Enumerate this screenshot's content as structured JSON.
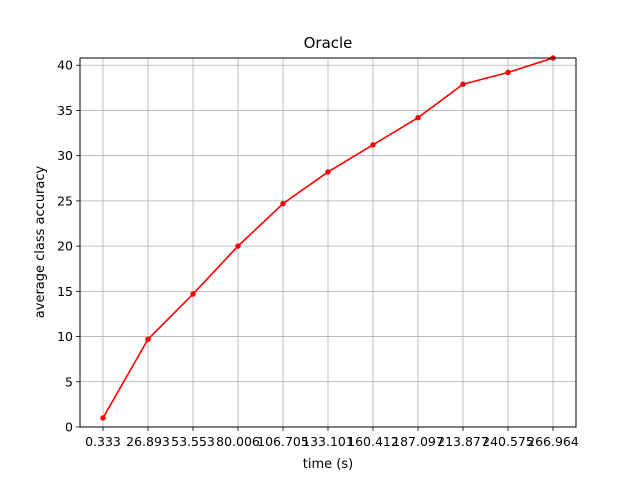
{
  "chart_data": {
    "type": "line",
    "title": "Oracle",
    "xlabel": "time (s)",
    "ylabel": "average class accuracy",
    "x_tick_labels": [
      "0.333",
      "26.893",
      "53.553",
      "80.006",
      "106.705",
      "133.101",
      "160.412",
      "187.097",
      "213.877",
      "240.575",
      "266.964"
    ],
    "y_ticks": [
      0,
      5,
      10,
      15,
      20,
      25,
      30,
      35,
      40
    ],
    "ylim": [
      0,
      40.8
    ],
    "grid": true,
    "line_color": "#ff0000",
    "grid_color": "#b0b0b0",
    "series": [
      {
        "values": [
          1.0,
          9.7,
          14.7,
          20.0,
          24.7,
          28.2,
          31.2,
          34.2,
          37.9,
          39.2,
          40.8
        ]
      }
    ]
  }
}
